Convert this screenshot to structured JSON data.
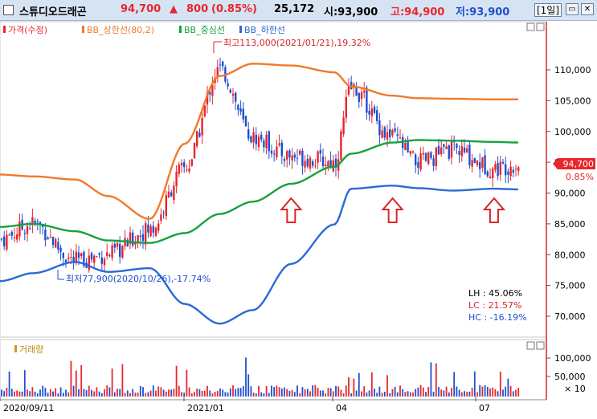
{
  "titlebar": {
    "stock_name": "스튜디오드래곤",
    "price": "94,700",
    "change_arrow": "▲",
    "change": "800",
    "change_pct": "(0.85%)",
    "volume": "25,172",
    "open_label": "시:93,900",
    "high_label": "고:94,900",
    "low_label": "저:93,900",
    "period_label": "[1일]"
  },
  "legend": {
    "price": "가격(수정)",
    "upper": "BB_상한선(80,2)",
    "middle": "BB_중심선",
    "lower": "BB_하한선"
  },
  "volume_legend": "거래량",
  "annotations": {
    "max_label": "최고113,000(2021/01/21),19.32%",
    "min_label": "최저77,900(2020/10/26),-17.74%"
  },
  "stats": {
    "lh": "LH :  45.06%",
    "lc": "LC :  21.57%",
    "hc": "HC : -16.19%"
  },
  "price_tag": {
    "price": "94,700",
    "pct": "0.85%"
  },
  "colors": {
    "up": "#e8262c",
    "down": "#1f4fd0",
    "upper_band": "#f07a2a",
    "middle_band": "#16a23c",
    "lower_band": "#2a6ad6",
    "arrow": "#d8252a",
    "titlebar_bg": "#d6e3f3"
  },
  "chart_data": [
    {
      "type": "line",
      "title": "",
      "y_axis_ticks": [
        "110,000",
        "105,000",
        "100,000",
        "95,000",
        "90,000",
        "85,000",
        "80,000",
        "75,000",
        "70,000"
      ],
      "ylim": [
        67000,
        117000
      ],
      "x_tick_labels": [
        "2020/09/11",
        "2021/01",
        "04",
        "07"
      ],
      "x": [
        "2020/09/11",
        "2020/10/01",
        "2020/10/26",
        "2020/11/15",
        "2020/12/10",
        "2020/12/31",
        "2021/01/21",
        "2021/02/10",
        "2021/03/05",
        "2021/03/31",
        "2021/04/10",
        "2021/05/05",
        "2021/05/20",
        "2021/06/10",
        "2021/07/05",
        "2021/07/20"
      ],
      "series": [
        {
          "name": "가격(수정)",
          "values": [
            82500,
            85000,
            79000,
            80000,
            84000,
            94000,
            110000,
            99000,
            96000,
            95000,
            107000,
            99000,
            95000,
            97000,
            94000,
            94700
          ]
        },
        {
          "name": "BB_상한선(80,2)",
          "values": [
            93000,
            92700,
            92200,
            89500,
            85800,
            98000,
            109000,
            111000,
            110700,
            109600,
            107300,
            105800,
            105400,
            105300,
            105200,
            105200
          ]
        },
        {
          "name": "BB_중심선",
          "values": [
            84500,
            85000,
            83800,
            82300,
            81900,
            83500,
            86600,
            88600,
            91500,
            94300,
            96400,
            98200,
            98600,
            98500,
            98300,
            98200
          ]
        },
        {
          "name": "BB_하한선",
          "values": [
            75700,
            77000,
            78800,
            77200,
            77800,
            72000,
            68800,
            71000,
            78500,
            84900,
            90700,
            91200,
            90800,
            90400,
            90700,
            90600
          ]
        }
      ],
      "annotations": [
        {
          "text": "최고113,000(2021/01/21),19.32%",
          "x": "2021/01/21",
          "y": 113000
        },
        {
          "text": "최저77,900(2020/10/26),-17.74%",
          "x": "2020/10/26",
          "y": 77900
        }
      ],
      "signal_markers": [
        {
          "x": "2021/03/05",
          "direction": "up"
        },
        {
          "x": "2021/05/05",
          "direction": "up"
        },
        {
          "x": "2021/07/05",
          "direction": "up"
        }
      ],
      "last_price": 94700
    },
    {
      "type": "bar",
      "title": "",
      "series": [
        {
          "name": "거래량",
          "values": []
        }
      ],
      "y_axis_ticks": [
        "100,000",
        "50,000"
      ],
      "y_unit": "× 10",
      "ylim": [
        0,
        130000
      ]
    }
  ]
}
